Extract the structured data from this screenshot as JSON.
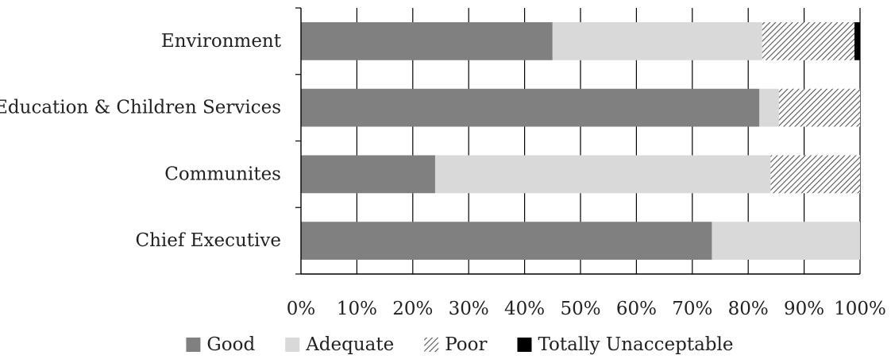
{
  "chart_data": {
    "type": "bar",
    "orientation": "horizontal",
    "stacked": true,
    "percent_stacked": true,
    "categories": [
      "Environment",
      "Education & Children Services",
      "Communites",
      "Chief Executive"
    ],
    "series": [
      {
        "name": "Good",
        "values": [
          45,
          82,
          24,
          73.5
        ],
        "color": "#808080",
        "pattern": "solid"
      },
      {
        "name": "Adequate",
        "values": [
          37.5,
          3.5,
          60,
          26.5
        ],
        "color": "#d9d9d9",
        "pattern": "solid"
      },
      {
        "name": "Poor",
        "values": [
          16.5,
          14.5,
          16,
          0
        ],
        "color": "#ffffff",
        "pattern": "diagonal-hatch"
      },
      {
        "name": "Totally Unacceptable",
        "values": [
          1,
          0,
          0,
          0
        ],
        "color": "#000000",
        "pattern": "solid"
      }
    ],
    "xlim": [
      0,
      100
    ],
    "x_ticks": [
      "0%",
      "10%",
      "20%",
      "30%",
      "40%",
      "50%",
      "60%",
      "70%",
      "80%",
      "90%",
      "100%"
    ],
    "grid": true,
    "legend_position": "bottom",
    "title": "",
    "xlabel": "",
    "ylabel": ""
  }
}
